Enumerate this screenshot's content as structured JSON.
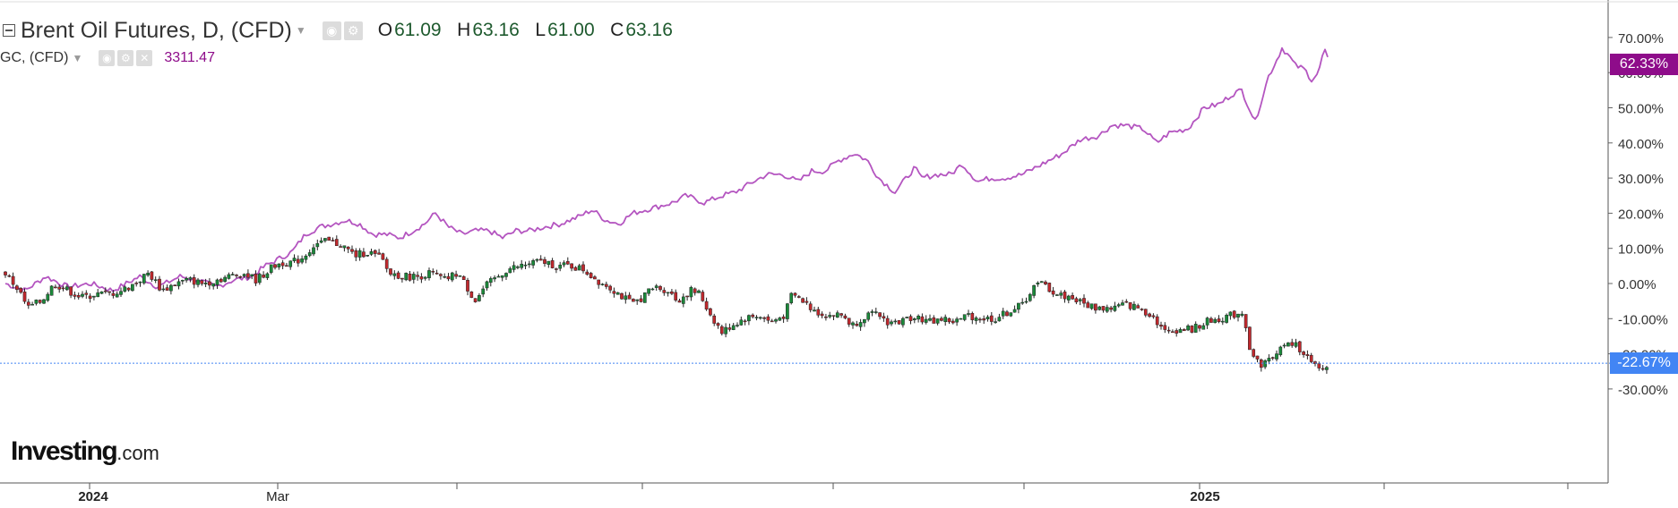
{
  "legend": {
    "main_title": "Brent Oil Futures, D, (CFD)",
    "ohlc": {
      "o_label": "O",
      "o": "61.09",
      "h_label": "H",
      "h": "63.16",
      "l_label": "L",
      "l": "61.00",
      "c_label": "C",
      "c": "63.16"
    },
    "sub_title": "GC, (CFD)",
    "sub_value": "3311.47"
  },
  "brand": {
    "name": "Investing",
    "suffix": ".com"
  },
  "price_tags": {
    "gold": {
      "text": "62.33%",
      "color": "#8e0c8a"
    },
    "brent": {
      "text": "-22.67%",
      "color": "#4285f4"
    }
  },
  "colors": {
    "up": "#1a8a3a",
    "down": "#c0282d",
    "gold_line": "#b455c0",
    "grid": "#e3e3e3"
  },
  "chart_data": {
    "type": "line",
    "y_axis": {
      "ticks": [
        "70.00%",
        "60.00%",
        "50.00%",
        "40.00%",
        "30.00%",
        "20.00%",
        "10.00%",
        "0.00%",
        "-10.00%",
        "-20.00%",
        "-30.00%"
      ],
      "tick_values": [
        70,
        60,
        50,
        40,
        30,
        20,
        10,
        0,
        -10,
        -20,
        -30
      ],
      "range": [
        -33,
        78
      ]
    },
    "x_axis": {
      "labels": [
        "2024",
        "Mar",
        "2025"
      ]
    },
    "series": [
      {
        "name": "GC, (CFD)",
        "style": "line",
        "anchor_points": [
          [
            0,
            0
          ],
          [
            22,
            -2
          ],
          [
            45,
            2
          ],
          [
            70,
            -1
          ],
          [
            95,
            0
          ],
          [
            120,
            -2
          ],
          [
            150,
            2
          ],
          [
            170,
            -1
          ],
          [
            195,
            2
          ],
          [
            215,
            1
          ],
          [
            235,
            -1
          ],
          [
            255,
            1
          ],
          [
            275,
            2
          ],
          [
            290,
            5
          ],
          [
            305,
            7
          ],
          [
            320,
            9
          ],
          [
            335,
            14
          ],
          [
            350,
            16
          ],
          [
            365,
            17
          ],
          [
            380,
            18
          ],
          [
            395,
            17
          ],
          [
            410,
            14
          ],
          [
            425,
            14
          ],
          [
            440,
            13
          ],
          [
            455,
            15
          ],
          [
            468,
            17
          ],
          [
            480,
            20
          ],
          [
            495,
            16
          ],
          [
            510,
            14
          ],
          [
            525,
            15
          ],
          [
            540,
            15
          ],
          [
            555,
            13
          ],
          [
            570,
            15
          ],
          [
            585,
            15
          ],
          [
            600,
            16
          ],
          [
            620,
            17
          ],
          [
            640,
            19
          ],
          [
            655,
            21
          ],
          [
            670,
            18
          ],
          [
            685,
            17
          ],
          [
            700,
            20
          ],
          [
            715,
            21
          ],
          [
            730,
            22
          ],
          [
            745,
            23
          ],
          [
            760,
            25
          ],
          [
            780,
            23
          ],
          [
            800,
            25
          ],
          [
            815,
            26
          ],
          [
            835,
            29
          ],
          [
            850,
            31
          ],
          [
            868,
            31
          ],
          [
            885,
            29
          ],
          [
            900,
            32
          ],
          [
            915,
            32
          ],
          [
            930,
            35
          ],
          [
            948,
            37
          ],
          [
            962,
            35
          ],
          [
            975,
            30
          ],
          [
            993,
            26
          ],
          [
            1015,
            33
          ],
          [
            1022,
            30
          ],
          [
            1040,
            31
          ],
          [
            1055,
            31
          ],
          [
            1068,
            34
          ],
          [
            1085,
            29
          ],
          [
            1100,
            30
          ],
          [
            1115,
            30
          ],
          [
            1135,
            31
          ],
          [
            1150,
            33
          ],
          [
            1165,
            35
          ],
          [
            1180,
            37
          ],
          [
            1200,
            41
          ],
          [
            1220,
            42
          ],
          [
            1235,
            45
          ],
          [
            1250,
            45
          ],
          [
            1270,
            44
          ],
          [
            1285,
            40
          ],
          [
            1300,
            43
          ],
          [
            1320,
            44
          ],
          [
            1338,
            50
          ],
          [
            1355,
            51
          ],
          [
            1370,
            54
          ],
          [
            1380,
            55
          ],
          [
            1395,
            46
          ],
          [
            1410,
            59
          ],
          [
            1418,
            63
          ],
          [
            1425,
            67
          ],
          [
            1432,
            65
          ],
          [
            1440,
            62
          ],
          [
            1450,
            61
          ],
          [
            1458,
            58
          ],
          [
            1466,
            60
          ],
          [
            1472,
            67
          ],
          [
            1478,
            62
          ]
        ]
      },
      {
        "name": "Brent Oil Futures, D, (CFD)",
        "style": "candlestick",
        "anchor_points": [
          [
            0,
            3
          ],
          [
            15,
            -2
          ],
          [
            25,
            -7
          ],
          [
            40,
            -5
          ],
          [
            55,
            0
          ],
          [
            70,
            -2
          ],
          [
            85,
            -4
          ],
          [
            100,
            -3
          ],
          [
            115,
            -3
          ],
          [
            130,
            -2
          ],
          [
            145,
            0
          ],
          [
            160,
            3
          ],
          [
            175,
            -2
          ],
          [
            190,
            0
          ],
          [
            205,
            1
          ],
          [
            220,
            0
          ],
          [
            235,
            1
          ],
          [
            250,
            2
          ],
          [
            265,
            3
          ],
          [
            280,
            1
          ],
          [
            290,
            3
          ],
          [
            300,
            5
          ],
          [
            310,
            6
          ],
          [
            320,
            6
          ],
          [
            330,
            7
          ],
          [
            345,
            11
          ],
          [
            360,
            12
          ],
          [
            375,
            11
          ],
          [
            390,
            8
          ],
          [
            405,
            9
          ],
          [
            420,
            7
          ],
          [
            428,
            3
          ],
          [
            445,
            2
          ],
          [
            460,
            2
          ],
          [
            475,
            3
          ],
          [
            490,
            1
          ],
          [
            505,
            3
          ],
          [
            515,
            -1
          ],
          [
            525,
            -5
          ],
          [
            535,
            -1
          ],
          [
            545,
            1
          ],
          [
            560,
            4
          ],
          [
            575,
            5
          ],
          [
            590,
            6
          ],
          [
            605,
            6
          ],
          [
            615,
            5
          ],
          [
            630,
            5
          ],
          [
            645,
            4
          ],
          [
            660,
            1
          ],
          [
            675,
            -1
          ],
          [
            685,
            -3
          ],
          [
            700,
            -6
          ],
          [
            715,
            -3
          ],
          [
            725,
            -1
          ],
          [
            740,
            -2
          ],
          [
            750,
            -5
          ],
          [
            765,
            -2
          ],
          [
            775,
            -3
          ],
          [
            785,
            -8
          ],
          [
            800,
            -14
          ],
          [
            810,
            -12
          ],
          [
            825,
            -10
          ],
          [
            840,
            -9
          ],
          [
            855,
            -11
          ],
          [
            870,
            -9
          ],
          [
            878,
            -3
          ],
          [
            890,
            -5
          ],
          [
            905,
            -8
          ],
          [
            920,
            -9
          ],
          [
            935,
            -9
          ],
          [
            945,
            -12
          ],
          [
            960,
            -9
          ],
          [
            975,
            -9
          ],
          [
            985,
            -11
          ],
          [
            1000,
            -11
          ],
          [
            1015,
            -9
          ],
          [
            1030,
            -11
          ],
          [
            1045,
            -10
          ],
          [
            1060,
            -11
          ],
          [
            1075,
            -9
          ],
          [
            1090,
            -10
          ],
          [
            1105,
            -10
          ],
          [
            1120,
            -8
          ],
          [
            1135,
            -6
          ],
          [
            1148,
            -1
          ],
          [
            1158,
            0
          ],
          [
            1172,
            -3
          ],
          [
            1190,
            -4
          ],
          [
            1205,
            -6
          ],
          [
            1220,
            -7
          ],
          [
            1235,
            -7
          ],
          [
            1250,
            -6
          ],
          [
            1265,
            -7
          ],
          [
            1280,
            -9
          ],
          [
            1295,
            -14
          ],
          [
            1310,
            -13
          ],
          [
            1325,
            -13
          ],
          [
            1340,
            -11
          ],
          [
            1355,
            -10
          ],
          [
            1370,
            -9
          ],
          [
            1382,
            -8
          ],
          [
            1390,
            -20
          ],
          [
            1400,
            -23
          ],
          [
            1410,
            -22
          ],
          [
            1420,
            -19
          ],
          [
            1435,
            -17
          ],
          [
            1448,
            -19
          ],
          [
            1458,
            -23
          ],
          [
            1468,
            -25
          ],
          [
            1478,
            -23
          ]
        ]
      }
    ],
    "last_values": {
      "gold": 62.33,
      "brent": -22.67
    },
    "grid": true
  }
}
